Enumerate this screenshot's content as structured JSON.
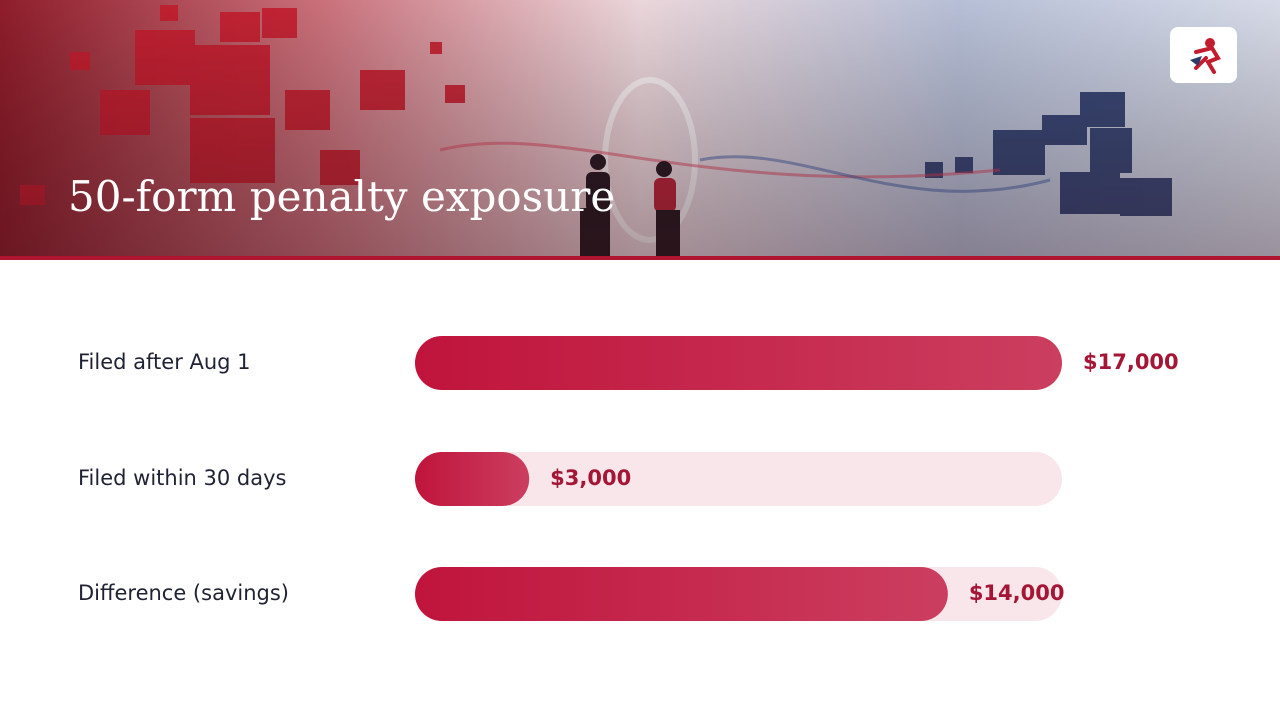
{
  "chart_data": {
    "type": "bar",
    "orientation": "horizontal",
    "title": "50-form penalty exposure",
    "categories": [
      "Filed after Aug 1",
      "Filed within 30 days",
      "Difference (savings)"
    ],
    "values": [
      17000,
      3000,
      14000
    ],
    "value_labels": [
      "$17,000",
      "$3,000",
      "$14,000"
    ],
    "color": "#c0143c",
    "xlim": [
      0,
      17000
    ]
  }
}
